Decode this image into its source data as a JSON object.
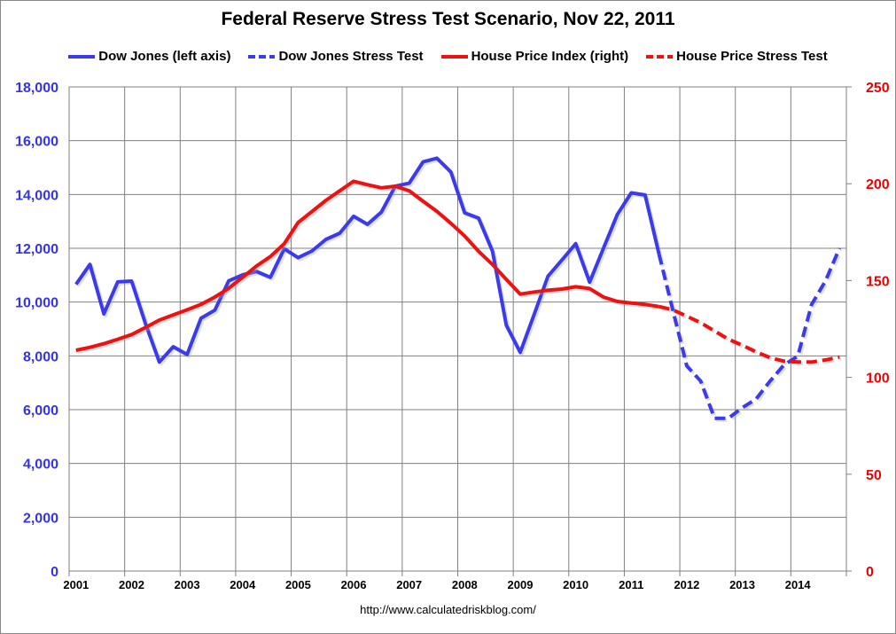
{
  "footer": "http://www.calculatedriskblog.com/",
  "chart_data": {
    "type": "line",
    "title": "Federal Reserve Stress Test Scenario, Nov 22, 2011",
    "x_ticks": [
      "2001",
      "2002",
      "2003",
      "2004",
      "2005",
      "2006",
      "2007",
      "2008",
      "2009",
      "2010",
      "2011",
      "2012",
      "2013",
      "2014"
    ],
    "x_range": [
      "2001Q1",
      "2014Q4"
    ],
    "x_frequency": "quarterly",
    "y_left": {
      "range": [
        0,
        18000
      ],
      "ticks": [
        "0",
        "2,000",
        "4,000",
        "6,000",
        "8,000",
        "10,000",
        "12,000",
        "14,000",
        "16,000",
        "18,000"
      ],
      "color": "#3333ee"
    },
    "y_right": {
      "range": [
        0,
        250
      ],
      "ticks": [
        "0",
        "50",
        "100",
        "150",
        "200",
        "250"
      ],
      "color": "#ee0000"
    },
    "grid": true,
    "legend_position": "top",
    "series": [
      {
        "name": "Dow Jones (left axis)",
        "axis": "left",
        "style": "solid",
        "color": "#3b3bec",
        "values": [
          10660,
          11400,
          9560,
          10750,
          10780,
          9200,
          7770,
          8340,
          8050,
          9400,
          9700,
          10790,
          11010,
          11140,
          10920,
          11980,
          11650,
          11900,
          12330,
          12560,
          13190,
          12890,
          13350,
          14310,
          14420,
          15210,
          15350,
          14840,
          13320,
          13120,
          11890,
          9140,
          8130,
          9530,
          10960,
          11560,
          12170,
          10740,
          12000,
          13260,
          14060,
          13980,
          11780,
          null,
          null,
          null,
          null,
          null,
          null,
          null,
          null,
          null,
          null,
          null,
          null,
          null
        ]
      },
      {
        "name": "Dow Jones Stress Test",
        "axis": "left",
        "style": "dashed",
        "color": "#3b3bec",
        "values": [
          null,
          null,
          null,
          null,
          null,
          null,
          null,
          null,
          null,
          null,
          null,
          null,
          null,
          null,
          null,
          null,
          null,
          null,
          null,
          null,
          null,
          null,
          null,
          null,
          null,
          null,
          null,
          null,
          null,
          null,
          null,
          null,
          null,
          null,
          null,
          null,
          null,
          null,
          null,
          null,
          null,
          null,
          11780,
          9700,
          7630,
          7060,
          5680,
          5680,
          6070,
          6400,
          7060,
          7660,
          7990,
          9910,
          10790,
          12000
        ]
      },
      {
        "name": "House Price Index (right)",
        "axis": "right",
        "style": "solid",
        "color": "#ee1111",
        "values": [
          114,
          115.5,
          117.4,
          119.7,
          122.1,
          125.8,
          129.6,
          132.3,
          134.9,
          137.7,
          141.5,
          146,
          151.7,
          157.5,
          162.4,
          169,
          180,
          185.7,
          191.4,
          196.4,
          201.3,
          199.5,
          197.9,
          198.7,
          196.4,
          191,
          185.7,
          179.6,
          173,
          165.1,
          158.3,
          150.6,
          143,
          144.1,
          145,
          145.6,
          146.8,
          145.9,
          141.5,
          139.2,
          138.4,
          137.7,
          136.6,
          null,
          null,
          null,
          null,
          null,
          null,
          null,
          null,
          null,
          null,
          null,
          null,
          null
        ]
      },
      {
        "name": "House Price Stress Test",
        "axis": "right",
        "style": "dashed",
        "color": "#ee1111",
        "values": [
          null,
          null,
          null,
          null,
          null,
          null,
          null,
          null,
          null,
          null,
          null,
          null,
          null,
          null,
          null,
          null,
          null,
          null,
          null,
          null,
          null,
          null,
          null,
          null,
          null,
          null,
          null,
          null,
          null,
          null,
          null,
          null,
          null,
          null,
          null,
          null,
          null,
          null,
          null,
          null,
          null,
          null,
          136.6,
          134.9,
          131.6,
          128.2,
          124,
          119.7,
          116.6,
          113.2,
          110.2,
          108.4,
          107.9,
          107.9,
          109,
          110.5
        ]
      }
    ]
  }
}
